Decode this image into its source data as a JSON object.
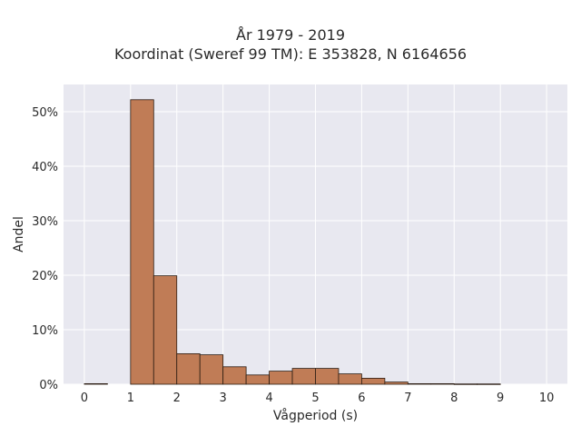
{
  "chart_data": {
    "type": "bar",
    "title": "År 1979 - 2019",
    "subtitle": "Koordinat (Sweref 99 TM): E 353828, N 6164656",
    "xlabel": "Vågperiod (s)",
    "ylabel": "Andel",
    "xlim": [
      -0.45,
      10.45
    ],
    "ylim": [
      0,
      55
    ],
    "xticks": [
      0,
      1,
      2,
      3,
      4,
      5,
      6,
      7,
      8,
      9,
      10
    ],
    "xtick_labels": [
      "0",
      "1",
      "2",
      "3",
      "4",
      "5",
      "6",
      "7",
      "8",
      "9",
      "10"
    ],
    "yticks": [
      0,
      10,
      20,
      30,
      40,
      50
    ],
    "ytick_labels": [
      "0%",
      "10%",
      "20%",
      "30%",
      "40%",
      "50%"
    ],
    "bin_width": 0.5,
    "bins": [
      {
        "x0": 0.0,
        "value": 0.1
      },
      {
        "x0": 0.5,
        "value": 0.0
      },
      {
        "x0": 1.0,
        "value": 52.2
      },
      {
        "x0": 1.5,
        "value": 19.9
      },
      {
        "x0": 2.0,
        "value": 5.6
      },
      {
        "x0": 2.5,
        "value": 5.4
      },
      {
        "x0": 3.0,
        "value": 3.2
      },
      {
        "x0": 3.5,
        "value": 1.7
      },
      {
        "x0": 4.0,
        "value": 2.4
      },
      {
        "x0": 4.5,
        "value": 2.9
      },
      {
        "x0": 5.0,
        "value": 2.9
      },
      {
        "x0": 5.5,
        "value": 1.9
      },
      {
        "x0": 6.0,
        "value": 1.1
      },
      {
        "x0": 6.5,
        "value": 0.4
      },
      {
        "x0": 7.0,
        "value": 0.1
      },
      {
        "x0": 7.5,
        "value": 0.1
      },
      {
        "x0": 8.0,
        "value": 0.05
      },
      {
        "x0": 8.5,
        "value": 0.05
      }
    ],
    "grid": true,
    "colors": {
      "bar": "#c07c56",
      "bar_edge": "#2b1c12",
      "plot_background": "#e8e8f0",
      "grid": "#ffffff"
    }
  }
}
